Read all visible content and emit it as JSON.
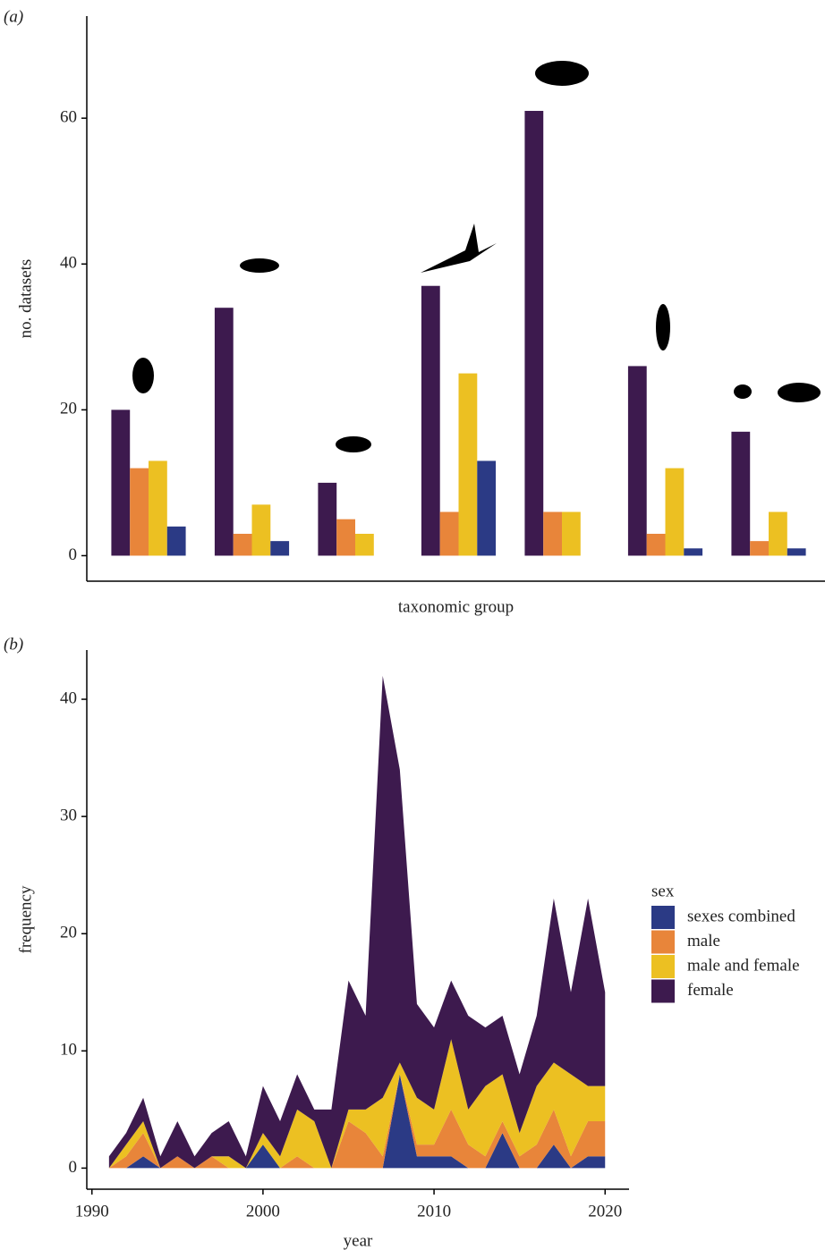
{
  "chart_data": [
    {
      "type": "bar",
      "label": "(a)",
      "ylabel": "no. datasets",
      "xlabel": "taxonomic group",
      "categories": [
        null,
        null,
        null,
        null,
        null,
        null,
        null
      ],
      "series": [
        {
          "color": "#3d1a4e",
          "values": [
            20,
            34,
            10,
            37,
            61,
            26,
            17
          ]
        },
        {
          "color": "#e8853a",
          "values": [
            12,
            3,
            5,
            6,
            6,
            3,
            2
          ]
        },
        {
          "color": "#ecc022",
          "values": [
            13,
            7,
            3,
            25,
            6,
            12,
            6
          ]
        },
        {
          "color": "#2b3a85",
          "values": [
            4,
            2,
            0,
            13,
            0,
            1,
            1
          ]
        }
      ],
      "ylim": [
        -3.5,
        74
      ],
      "yticks": [
        0,
        20,
        40,
        60
      ],
      "grid": false
    },
    {
      "type": "stacked-area",
      "label": "(b)",
      "ylabel": "frequency",
      "xlabel": "year",
      "legend_title": "sex",
      "x": [
        1991,
        1992,
        1993,
        1994,
        1995,
        1996,
        1997,
        1998,
        1999,
        2000,
        2001,
        2002,
        2003,
        2004,
        2005,
        2006,
        2007,
        2008,
        2009,
        2010,
        2011,
        2012,
        2013,
        2014,
        2015,
        2016,
        2017,
        2018,
        2019,
        2020
      ],
      "series": [
        {
          "name": "sexes combined",
          "color": "#2b3a85",
          "values": [
            0,
            0,
            1,
            0,
            0,
            0,
            0,
            0,
            0,
            2,
            0,
            0,
            0,
            0,
            0,
            0,
            0,
            8,
            1,
            1,
            1,
            0,
            0,
            3,
            0,
            0,
            2,
            0,
            1,
            1
          ]
        },
        {
          "name": "male",
          "color": "#e8853a",
          "values": [
            0,
            1,
            2,
            0,
            1,
            0,
            1,
            0,
            0,
            0,
            0,
            1,
            0,
            0,
            4,
            3,
            1,
            0,
            1,
            1,
            4,
            2,
            1,
            1,
            1,
            2,
            3,
            1,
            3,
            3
          ]
        },
        {
          "name": "male and female",
          "color": "#ecc022",
          "values": [
            0,
            1,
            1,
            0,
            0,
            0,
            0,
            1,
            0,
            1,
            1,
            4,
            4,
            0,
            1,
            2,
            5,
            1,
            4,
            3,
            6,
            3,
            6,
            4,
            2,
            5,
            4,
            7,
            3,
            3
          ]
        },
        {
          "name": "female",
          "color": "#3d1a4e",
          "values": [
            1,
            1,
            2,
            1,
            3,
            1,
            2,
            3,
            1,
            4,
            3,
            3,
            1,
            5,
            11,
            8,
            36,
            25,
            8,
            7,
            5,
            8,
            5,
            5,
            5,
            6,
            14,
            7,
            16,
            8
          ]
        }
      ],
      "xlim": [
        1989.7,
        2021.4
      ],
      "xticks": [
        1990,
        2000,
        2010,
        2020
      ],
      "ylim": [
        -1.8,
        44.2
      ],
      "yticks": [
        0,
        10,
        20,
        30,
        40
      ],
      "grid": false,
      "legend": "right"
    }
  ]
}
